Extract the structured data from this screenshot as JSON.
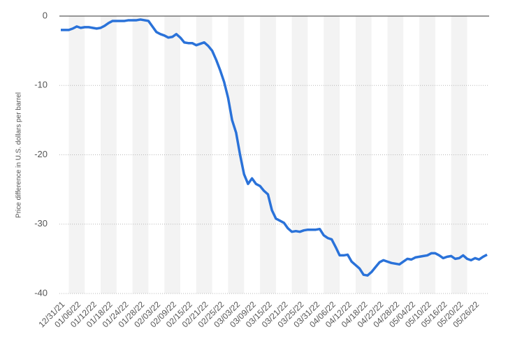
{
  "chart_data": {
    "type": "line",
    "y_label": "Price difference in U.S. dollars per barrel",
    "categories": [
      "12/31/21",
      null,
      null,
      null,
      "01/06/22",
      null,
      null,
      null,
      "01/12/22",
      null,
      null,
      null,
      "01/18/22",
      null,
      null,
      null,
      "01/24/22",
      null,
      null,
      null,
      "01/28/22",
      null,
      null,
      null,
      "02/03/22",
      null,
      null,
      null,
      "02/09/22",
      null,
      null,
      null,
      "02/15/22",
      null,
      null,
      null,
      "02/21/22",
      null,
      null,
      null,
      "02/25/22",
      null,
      null,
      null,
      "03/03/22",
      null,
      null,
      null,
      "03/09/22",
      null,
      null,
      null,
      "03/15/22",
      null,
      null,
      null,
      "03/21/22",
      null,
      null,
      null,
      "03/25/22",
      null,
      null,
      null,
      "03/31/22",
      null,
      null,
      null,
      "04/06/22",
      null,
      null,
      null,
      "04/12/22",
      null,
      null,
      null,
      "04/18/22",
      null,
      null,
      null,
      "04/22/22",
      null,
      null,
      null,
      "04/28/22",
      null,
      null,
      null,
      "05/04/22",
      null,
      null,
      null,
      "05/10/22",
      null,
      null,
      null,
      "05/16/22",
      null,
      null,
      null,
      "05/20/22",
      null,
      null,
      null,
      "05/26/22",
      null,
      null,
      null
    ],
    "series": [
      {
        "name": "Price difference",
        "color": "#2a72d9",
        "values": [
          -2.0,
          -2.0,
          -2.0,
          -1.8,
          -1.5,
          -1.7,
          -1.6,
          -1.6,
          -1.7,
          -1.8,
          -1.7,
          -1.4,
          -1.0,
          -0.7,
          -0.7,
          -0.7,
          -0.7,
          -0.6,
          -0.6,
          -0.6,
          -0.5,
          -0.6,
          -0.7,
          -1.5,
          -2.3,
          -2.6,
          -2.8,
          -3.1,
          -3.0,
          -2.6,
          -3.1,
          -3.8,
          -3.9,
          -3.9,
          -4.2,
          -4.0,
          -3.8,
          -4.3,
          -5.0,
          -6.3,
          -7.8,
          -9.5,
          -11.8,
          -15.0,
          -16.8,
          -20.0,
          -22.8,
          -24.2,
          -23.4,
          -24.2,
          -24.5,
          -25.2,
          -25.7,
          -28.0,
          -29.2,
          -29.5,
          -29.8,
          -30.6,
          -31.1,
          -31.0,
          -31.1,
          -30.9,
          -30.8,
          -30.8,
          -30.8,
          -30.7,
          -31.6,
          -32.0,
          -32.2,
          -33.3,
          -34.5,
          -34.5,
          -34.4,
          -35.4,
          -35.9,
          -36.4,
          -37.3,
          -37.4,
          -36.9,
          -36.2,
          -35.5,
          -35.2,
          -35.4,
          -35.6,
          -35.7,
          -35.8,
          -35.4,
          -35.0,
          -35.1,
          -34.8,
          -34.7,
          -34.6,
          -34.5,
          -34.2,
          -34.2,
          -34.5,
          -34.9,
          -34.7,
          -34.6,
          -35.0,
          -34.9,
          -34.5,
          -35.0,
          -35.2,
          -34.9,
          -35.1,
          -34.7,
          -34.4
        ]
      }
    ],
    "ylim": [
      -40,
      0
    ],
    "yticks": [
      0,
      -10,
      -20,
      -30,
      -40
    ],
    "grid": true
  }
}
